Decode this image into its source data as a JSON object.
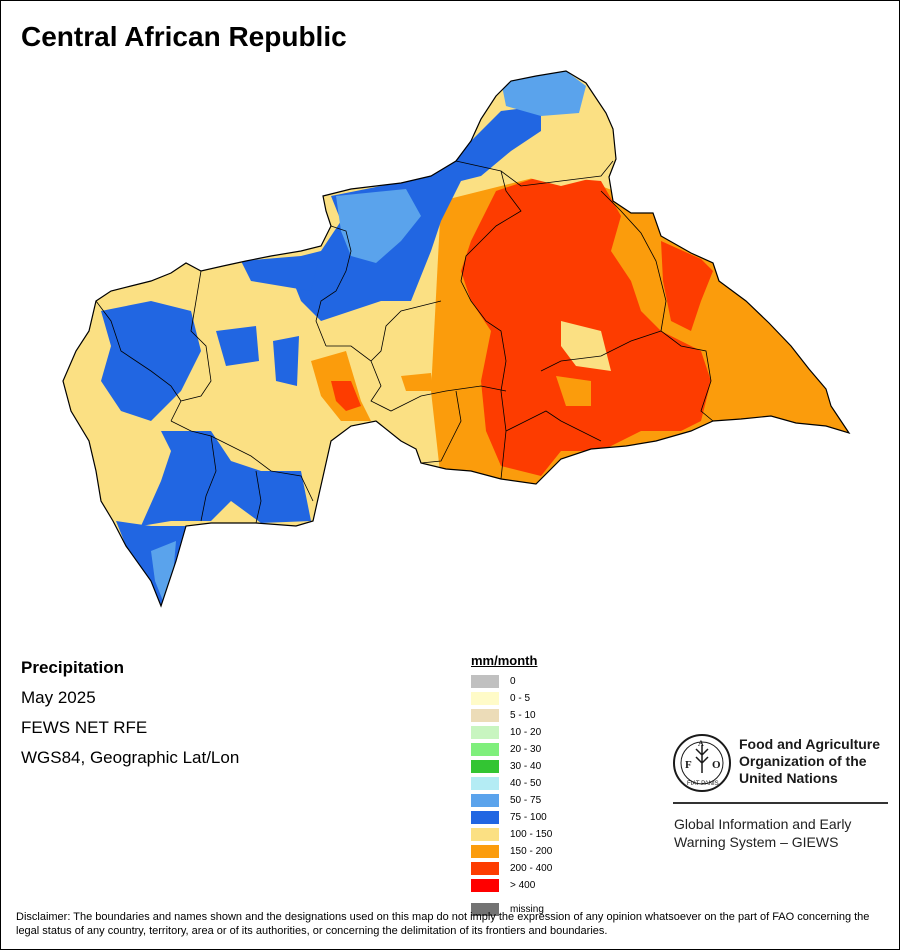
{
  "title": "Central African Republic",
  "info": {
    "variable": "Precipitation",
    "period": "May 2025",
    "source": "FEWS NET RFE",
    "projection": "WGS84, Geographic Lat/Lon"
  },
  "legend": {
    "title": "mm/month",
    "items": [
      {
        "label": "0",
        "color": "#c0c0c0"
      },
      {
        "label": "0 - 5",
        "color": "#fffbc8"
      },
      {
        "label": "5 - 10",
        "color": "#ecdcb8"
      },
      {
        "label": "10 - 20",
        "color": "#c8f5c0"
      },
      {
        "label": "20 - 30",
        "color": "#7fef7c"
      },
      {
        "label": "30 - 40",
        "color": "#33c533"
      },
      {
        "label": "40 - 50",
        "color": "#b4ecf4"
      },
      {
        "label": "50 - 75",
        "color": "#5aa3ec"
      },
      {
        "label": "75 - 100",
        "color": "#2166e2"
      },
      {
        "label": "100 - 150",
        "color": "#fbe083"
      },
      {
        "label": "150 - 200",
        "color": "#fb9c0c"
      },
      {
        "label": "200 - 400",
        "color": "#fd3c00"
      },
      {
        "label": "> 400",
        "color": "#ff0000"
      }
    ],
    "missing": {
      "label": "missing",
      "color": "#737373"
    }
  },
  "org": {
    "name_line1": "Food and Agriculture",
    "name_line2": "Organization of the",
    "name_line3": "United Nations",
    "logo_text": "FAO",
    "logo_motto": "FIAT PANIS",
    "program_line1": "Global Information and Early",
    "program_line2": "Warning System – GIEWS"
  },
  "disclaimer": "Disclaimer: The boundaries and names shown and the designations used on this map do not imply the expression of any opinion whatsoever on the part of FAO concerning the legal status of any country, territory, area or of its authorities, or concerning the delimitation of its frontiers and boundaries."
}
